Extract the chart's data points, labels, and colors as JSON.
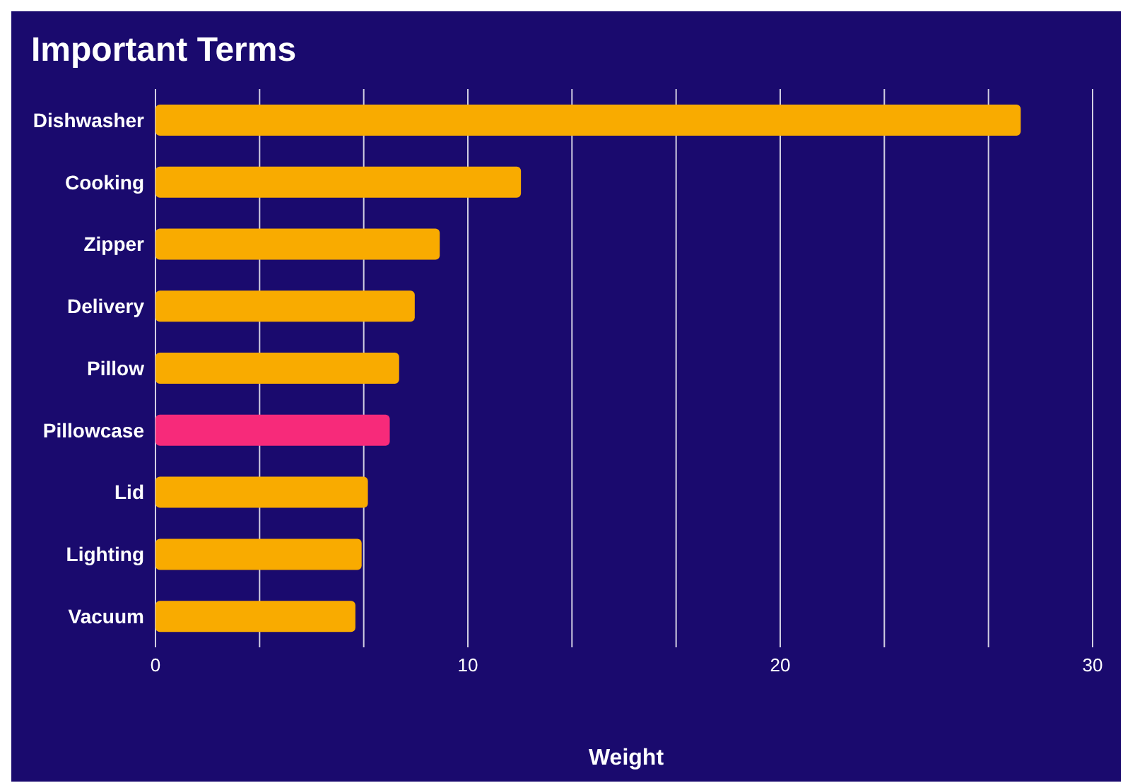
{
  "chart_data": {
    "type": "bar",
    "orientation": "horizontal",
    "title": "Important Terms",
    "xlabel": "Weight",
    "categories": [
      "Dishwasher",
      "Cooking",
      "Zipper",
      "Delivery",
      "Pillow",
      "Pillowcase",
      "Lid",
      "Lighting",
      "Vacuum"
    ],
    "values": [
      27.7,
      11.7,
      9.1,
      8.3,
      7.8,
      7.5,
      6.8,
      6.6,
      6.4
    ],
    "colors": [
      "#f9ab00",
      "#f9ab00",
      "#f9ab00",
      "#f9ab00",
      "#f9ab00",
      "#f72a7a",
      "#f9ab00",
      "#f9ab00",
      "#f9ab00"
    ],
    "xlim": [
      0,
      30
    ],
    "xticks": [
      0,
      {
        "value": 3.333,
        "label": null
      },
      {
        "value": 6.667,
        "label": null
      },
      10,
      {
        "value": 13.333,
        "label": null
      },
      {
        "value": 16.667,
        "label": null
      },
      20,
      {
        "value": 23.333,
        "label": null
      },
      {
        "value": 26.667,
        "label": null
      },
      30
    ],
    "grid": "x"
  }
}
